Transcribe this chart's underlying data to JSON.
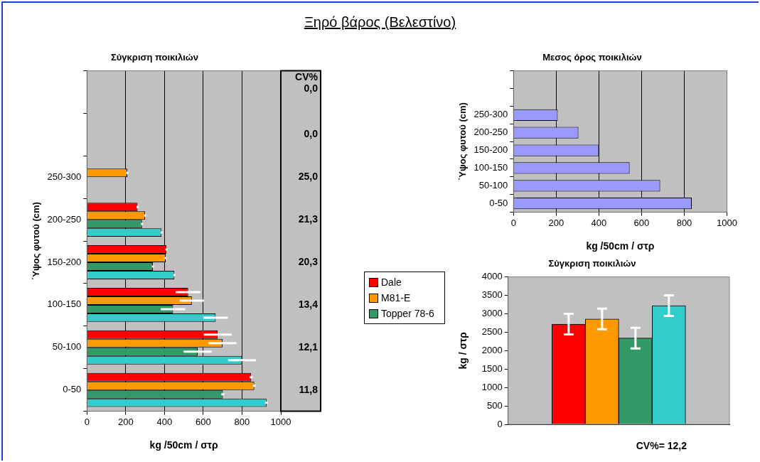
{
  "chart_data": [
    {
      "type": "other",
      "title": "Ξηρό βάρος (Βελεστίνο)"
    },
    {
      "type": "bar",
      "title": "Σύγκριση ποικιλιών",
      "xlabel": "kg /50cm / στρ",
      "ylabel": "΄Υψος φυτού (cm)",
      "orientation": "horizontal",
      "categories": [
        null,
        null,
        "250-300",
        "200-250",
        "150-200",
        "100-150",
        "50-100",
        "0-50"
      ],
      "series": [
        {
          "name": "Dale",
          "color": "#ff0000",
          "values": [
            null,
            null,
            0,
            261,
            410,
            522,
            674,
            847
          ],
          "errors": [
            null,
            null,
            null,
            5,
            5,
            64,
            72,
            8
          ]
        },
        {
          "name": "M81-E",
          "color": "#ff9900",
          "values": [
            null,
            null,
            208,
            300,
            406,
            541,
            699,
            863
          ],
          "errors": [
            null,
            null,
            5,
            5,
            5,
            63,
            72,
            7
          ]
        },
        {
          "name": "Topper 78-6",
          "color": "#339966",
          "values": [
            null,
            null,
            0,
            284,
            340,
            444,
            571,
            701
          ],
          "errors": [
            null,
            null,
            null,
            5,
            5,
            63,
            72,
            8
          ]
        },
        {
          "color": "#33cccc",
          "values": [
            null,
            null,
            0,
            385,
            451,
            664,
            800,
            926
          ],
          "errors": [
            null,
            null,
            null,
            5,
            5,
            63,
            72,
            7
          ]
        }
      ],
      "xlim": [
        0,
        1000
      ],
      "xticks": [
        0,
        200,
        400,
        600,
        800,
        1000
      ],
      "grid": "x",
      "legend": "right",
      "annotations": [
        "CV%",
        "0,0",
        "0,0",
        "25,0",
        "21,3",
        "20,3",
        "13,4",
        "12,1",
        "11,8"
      ]
    },
    {
      "type": "bar",
      "title": "Μεσος όρος ποικιλιών",
      "xlabel": "kg /50cm / στρ",
      "ylabel": "΄Υψος φυτού (cm)",
      "orientation": "horizontal",
      "categories": [
        null,
        null,
        "250-300",
        "200-250",
        "150-200",
        "100-150",
        "50-100",
        "0-50"
      ],
      "values": [
        null,
        null,
        207,
        304,
        400,
        544,
        687,
        835
      ],
      "color": "#9999ff",
      "xlim": [
        0,
        1000
      ],
      "xticks": [
        0,
        200,
        400,
        600,
        800,
        1000
      ],
      "grid": "x"
    },
    {
      "type": "bar",
      "title": "Σύγκριση ποικιλιών",
      "ylabel": "kg / στρ",
      "categories": [
        null,
        null,
        null,
        null
      ],
      "values": [
        2720,
        2860,
        2340,
        3220
      ],
      "colors": [
        "#ff0000",
        "#ff9900",
        "#339966",
        "#33cccc"
      ],
      "errors": [
        280,
        280,
        280,
        280
      ],
      "ylim": [
        0,
        4000
      ],
      "yticks": [
        0,
        500,
        1000,
        1500,
        2000,
        2500,
        3000,
        3500,
        4000
      ],
      "grid": false,
      "annotations": [
        "CV%= 12,2"
      ]
    }
  ]
}
